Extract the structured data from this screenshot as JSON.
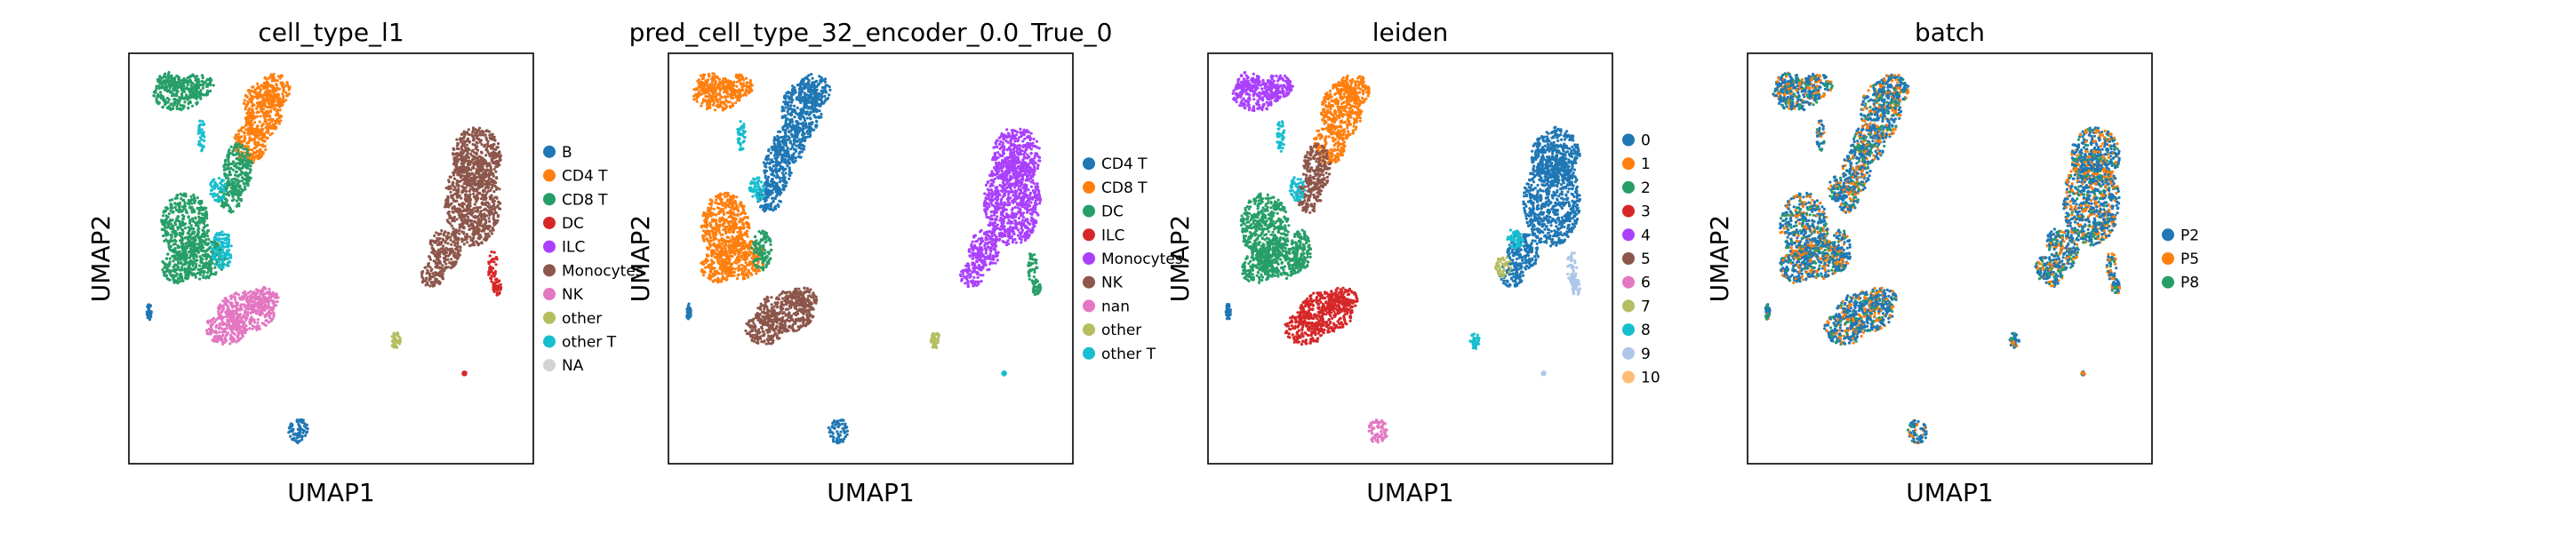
{
  "chart_data": [
    {
      "type": "scatter",
      "title": "cell_type_l1",
      "xlabel": "UMAP1",
      "ylabel": "UMAP2",
      "grid": false,
      "legend_position": "right",
      "legend": [
        {
          "label": "B",
          "color": "#1f77b4"
        },
        {
          "label": "CD4 T",
          "color": "#ff7f0e"
        },
        {
          "label": "CD8 T",
          "color": "#279e68"
        },
        {
          "label": "DC",
          "color": "#d62728"
        },
        {
          "label": "ILC",
          "color": "#aa40fc"
        },
        {
          "label": "Monocytes",
          "color": "#8c564b"
        },
        {
          "label": "NK",
          "color": "#e377c2"
        },
        {
          "label": "other",
          "color": "#b5bd61"
        },
        {
          "label": "other T",
          "color": "#17becf"
        },
        {
          "label": "NA",
          "color": "#d3d3d3"
        }
      ],
      "clusters": {
        "top_left": "CD8 T",
        "upper_mid": "CD4 T",
        "mid_stalk": "CD8 T",
        "stalk_accent": "other T",
        "left_body": "CD8 T",
        "left_accent": "other T",
        "lower_blob": "NK",
        "monocyte_body": "Monocytes",
        "monocyte_tail": "DC",
        "bottom_island": "B",
        "small_island": "other",
        "tiny_dot": "DC",
        "left_dot": "B"
      }
    },
    {
      "type": "scatter",
      "title": "pred_cell_type_32_encoder_0.0_True_0",
      "xlabel": "UMAP1",
      "ylabel": "UMAP2",
      "grid": false,
      "legend_position": "right",
      "legend": [
        {
          "label": "CD4 T",
          "color": "#1f77b4"
        },
        {
          "label": "CD8 T",
          "color": "#ff7f0e"
        },
        {
          "label": "DC",
          "color": "#279e68"
        },
        {
          "label": "ILC",
          "color": "#d62728"
        },
        {
          "label": "Monocytes",
          "color": "#aa40fc"
        },
        {
          "label": "NK",
          "color": "#8c564b"
        },
        {
          "label": "nan",
          "color": "#e377c2"
        },
        {
          "label": "other",
          "color": "#b5bd61"
        },
        {
          "label": "other T",
          "color": "#17becf"
        }
      ],
      "clusters": {
        "top_left": "CD8 T",
        "upper_mid": "CD4 T",
        "mid_stalk": "CD4 T",
        "stalk_accent": "other T",
        "left_body": "CD8 T",
        "left_accent": "DC",
        "lower_blob": "NK",
        "monocyte_body": "Monocytes",
        "monocyte_tail": "DC",
        "bottom_island": "CD4 T",
        "small_island": "other",
        "tiny_dot": "other T",
        "left_dot": "CD4 T"
      }
    },
    {
      "type": "scatter",
      "title": "leiden",
      "xlabel": "UMAP1",
      "ylabel": "UMAP2",
      "grid": false,
      "legend_position": "right",
      "legend": [
        {
          "label": "0",
          "color": "#1f77b4"
        },
        {
          "label": "1",
          "color": "#ff7f0e"
        },
        {
          "label": "2",
          "color": "#279e68"
        },
        {
          "label": "3",
          "color": "#d62728"
        },
        {
          "label": "4",
          "color": "#aa40fc"
        },
        {
          "label": "5",
          "color": "#8c564b"
        },
        {
          "label": "6",
          "color": "#e377c2"
        },
        {
          "label": "7",
          "color": "#b5bd61"
        },
        {
          "label": "8",
          "color": "#17becf"
        },
        {
          "label": "9",
          "color": "#aec7e8"
        },
        {
          "label": "10",
          "color": "#ffbb78"
        }
      ],
      "clusters": {
        "top_left": "4",
        "upper_mid": "1",
        "mid_stalk": "5",
        "stalk_accent": "8",
        "left_body": "2",
        "left_accent": "2",
        "lower_blob": "3",
        "monocyte_body": "0",
        "monocyte_tail": "9",
        "monocyte_accent": "8",
        "monocyte_accent2": "7",
        "bottom_island": "6",
        "small_island": "8",
        "tiny_dot": "9",
        "left_dot": "0"
      }
    },
    {
      "type": "scatter",
      "title": "batch",
      "xlabel": "UMAP1",
      "ylabel": "UMAP2",
      "grid": false,
      "legend_position": "right",
      "legend": [
        {
          "label": "P2",
          "color": "#1f77b4"
        },
        {
          "label": "P5",
          "color": "#ff7f0e"
        },
        {
          "label": "P8",
          "color": "#279e68"
        }
      ],
      "mixed": true
    }
  ]
}
